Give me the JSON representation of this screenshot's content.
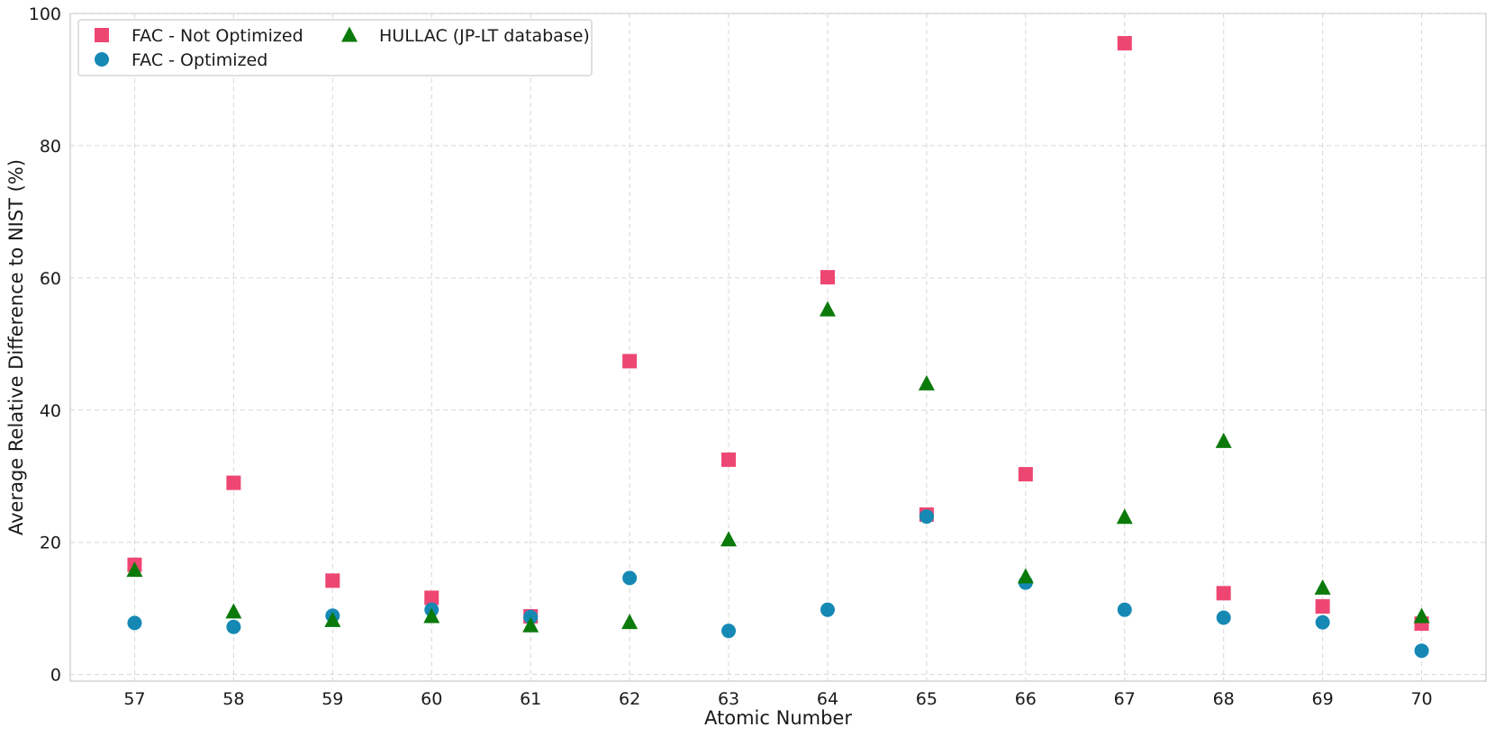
{
  "chart_data": {
    "type": "scatter",
    "title": "",
    "xlabel": "Atomic Number",
    "ylabel": "Average Relative Difference to NIST (%)",
    "x": [
      57,
      58,
      59,
      60,
      61,
      62,
      63,
      64,
      65,
      66,
      67,
      68,
      69,
      70
    ],
    "x_ticks": [
      "57",
      "58",
      "59",
      "60",
      "61",
      "62",
      "63",
      "64",
      "65",
      "66",
      "67",
      "68",
      "69",
      "70"
    ],
    "xlim": [
      56.35,
      70.65
    ],
    "ylim": [
      -1,
      100
    ],
    "y_ticks": [
      0,
      20,
      40,
      60,
      80,
      100
    ],
    "grid": true,
    "legend_position": "top-left",
    "series": [
      {
        "name": "FAC - Not Optimized",
        "marker": "square",
        "color": "#ee4672",
        "values": [
          16.6,
          29.0,
          14.2,
          11.6,
          8.8,
          47.4,
          32.5,
          60.1,
          24.2,
          30.3,
          95.5,
          12.3,
          10.3,
          7.7
        ]
      },
      {
        "name": "FAC - Optimized",
        "marker": "circle",
        "color": "#1589b4",
        "values": [
          7.8,
          7.2,
          8.9,
          9.8,
          8.7,
          14.6,
          6.6,
          9.8,
          23.9,
          13.9,
          9.8,
          8.6,
          7.9,
          3.6
        ]
      },
      {
        "name": "HULLAC (JP-LT database)",
        "marker": "triangle",
        "color": "#0b7a0b",
        "values": [
          15.8,
          9.5,
          8.2,
          8.8,
          7.4,
          7.9,
          20.4,
          55.2,
          44.0,
          14.8,
          23.8,
          35.3,
          13.1,
          8.8
        ]
      }
    ]
  }
}
